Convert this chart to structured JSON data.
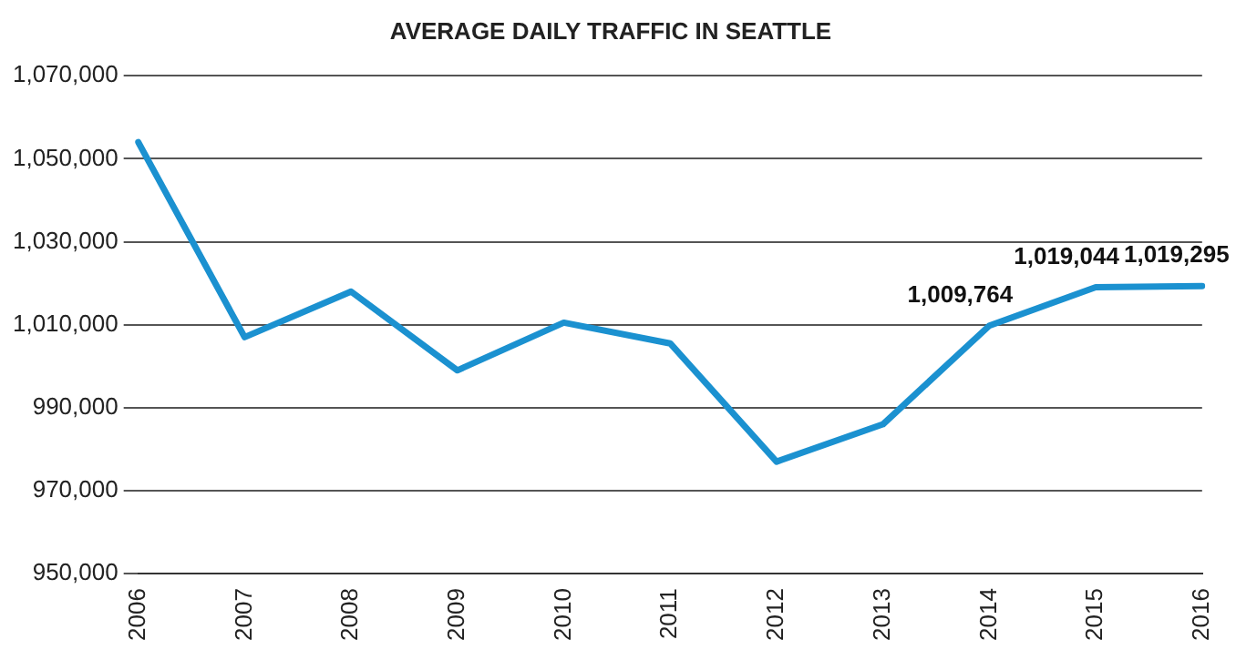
{
  "chart_data": {
    "type": "line",
    "title": "AVERAGE DAILY TRAFFIC IN SEATTLE",
    "categories": [
      "2006",
      "2007",
      "2008",
      "2009",
      "2010",
      "2011",
      "2012",
      "2013",
      "2014",
      "2015",
      "2016"
    ],
    "series": [
      {
        "color": "#1b91d0",
        "values": [
          1054000,
          1007000,
          1018000,
          999000,
          1010500,
          1005500,
          977000,
          986000,
          1009764,
          1019044,
          1019295
        ],
        "value_labels": [
          null,
          null,
          null,
          null,
          null,
          null,
          null,
          null,
          "1,009,764",
          "1,019,044",
          "1,019,295"
        ]
      }
    ],
    "ylim": [
      950000,
      1070000
    ],
    "yticks": [
      {
        "value": 950000,
        "label": "950,000"
      },
      {
        "value": 970000,
        "label": "970,000"
      },
      {
        "value": 990000,
        "label": "990,000"
      },
      {
        "value": 1010000,
        "label": "1,010,000"
      },
      {
        "value": 1030000,
        "label": "1,030,000"
      },
      {
        "value": 1050000,
        "label": "1,050,000"
      },
      {
        "value": 1070000,
        "label": "1,070,000"
      }
    ],
    "grid": "y",
    "legend": false,
    "marker": "none",
    "line_style": "solid"
  }
}
